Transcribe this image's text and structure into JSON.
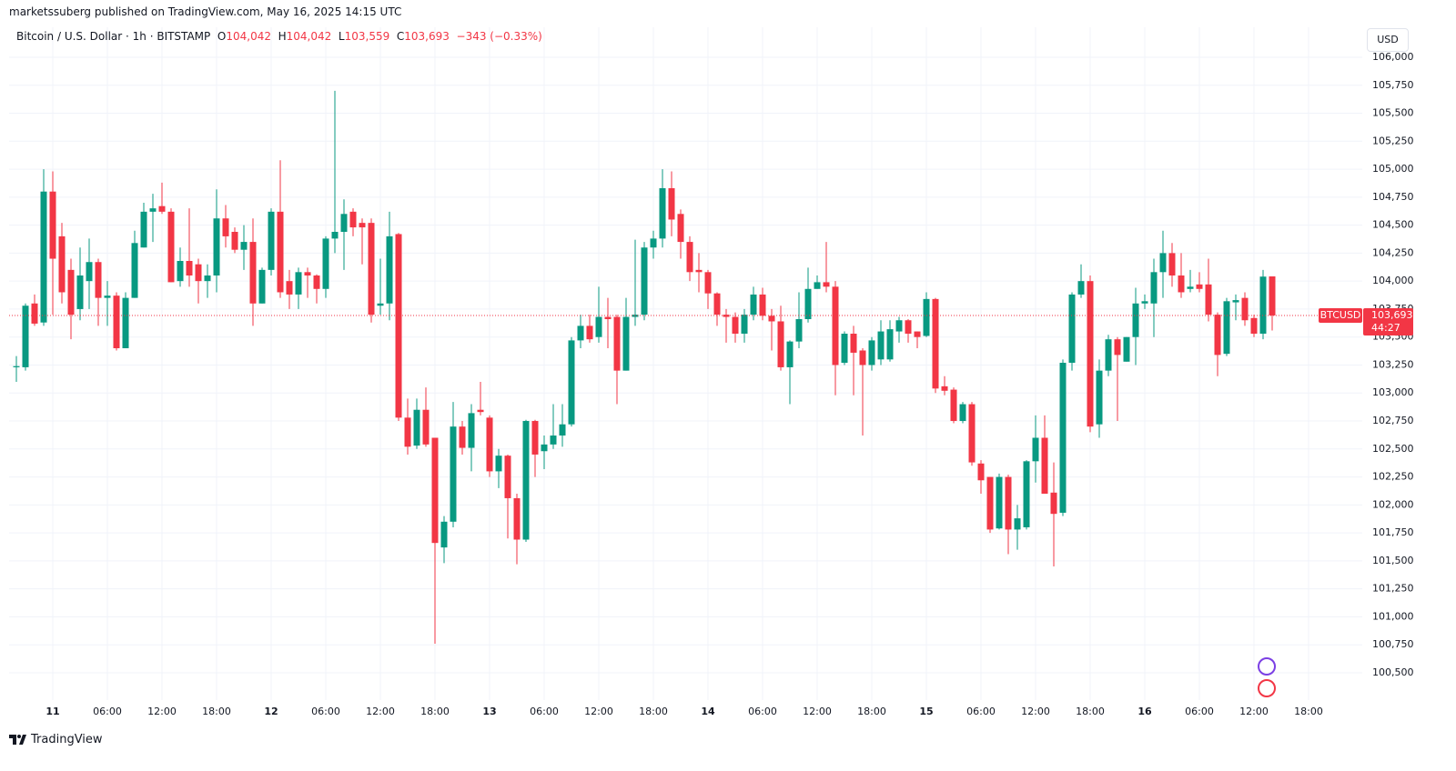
{
  "chart_data": {
    "type": "candlestick",
    "published": "marketssuberg published on TradingView.com, May 16, 2025 14:15 UTC",
    "legend": {
      "symbol": "Bitcoin / U.S. Dollar · 1h · BITSTAMP",
      "o_label": "O",
      "o": "104,042",
      "h_label": "H",
      "h": "104,042",
      "l_label": "L",
      "l": "103,559",
      "c_label": "C",
      "c": "103,693",
      "change": "−343 (−0.33%)"
    },
    "currency": "USD",
    "ticker": "BTCUSD",
    "countdown": "44:27",
    "brand": "TradingView",
    "up_color": "#089981",
    "down_color": "#f23645",
    "grid": true,
    "x": [
      -4,
      -3,
      -2,
      -1,
      0,
      1,
      2,
      3,
      4,
      5,
      6,
      7,
      8,
      9,
      10,
      11,
      12,
      13,
      14,
      15,
      16,
      17,
      18,
      19,
      20,
      21,
      22,
      23,
      24,
      25,
      26,
      27,
      28,
      29,
      30,
      31,
      32,
      33,
      34,
      35,
      36,
      37,
      38,
      39,
      40,
      41,
      42,
      43,
      44,
      45,
      46,
      47,
      48,
      49,
      50,
      51,
      52,
      53,
      54,
      55,
      56,
      57,
      58,
      59,
      60,
      61,
      62,
      63,
      64,
      65,
      66,
      67,
      68,
      69,
      70,
      71,
      72,
      73,
      74,
      75,
      76,
      77,
      78,
      79,
      80,
      81,
      82,
      83,
      84,
      85,
      86,
      87,
      88,
      89,
      90,
      91,
      92,
      93,
      94,
      95,
      96,
      97,
      98,
      99,
      100,
      101,
      102,
      103,
      104,
      105,
      106,
      107,
      108,
      109,
      110,
      111,
      112,
      113,
      114,
      115,
      116,
      117,
      118,
      119,
      120,
      121,
      122,
      123,
      124,
      125,
      126,
      127,
      128,
      129,
      130,
      131,
      132,
      133,
      134
    ],
    "open": [
      103230,
      103230,
      103800,
      103630,
      104800,
      104400,
      104100,
      103750,
      104000,
      104170,
      103850,
      103870,
      103400,
      103850,
      104300,
      104620,
      104670,
      104620,
      104000,
      104180,
      104150,
      104000,
      104050,
      104560,
      104440,
      104280,
      104350,
      103800,
      104100,
      104620,
      104000,
      103880,
      104080,
      104050,
      103930,
      104380,
      104440,
      104620,
      104520,
      104520,
      103780,
      103800,
      104420,
      102780,
      102530,
      102850,
      102600,
      101620,
      101850,
      102700,
      102510,
      102850,
      102780,
      102300,
      102440,
      102060,
      101690,
      102750,
      102480,
      102540,
      102620,
      102720,
      103470,
      103600,
      103500,
      103680,
      103680,
      103200,
      103680,
      103700,
      104300,
      104380,
      104830,
      104600,
      104350,
      104100,
      104080,
      103890,
      103700,
      103680,
      103530,
      103700,
      103880,
      103690,
      103640,
      103230,
      103460,
      103660,
      103930,
      103990,
      103950,
      103270,
      103530,
      103380,
      103250,
      103300,
      103300,
      103550,
      103650,
      103550,
      103510,
      103840,
      103060,
      103030,
      102750,
      102900,
      102370,
      102250,
      101790,
      102250,
      101780,
      101800,
      102390,
      102600,
      102110,
      101930,
      103270,
      103880,
      104000,
      102720,
      103200,
      103480,
      103280,
      103500,
      103800,
      103800,
      104080,
      104250,
      104050,
      103930,
      103970,
      103970,
      103700,
      103350,
      103810,
      103850,
      103670,
      103530,
      104042
    ],
    "high": [
      103330,
      103800,
      103880,
      105000,
      104980,
      104520,
      104200,
      104300,
      104380,
      104200,
      104000,
      103900,
      103900,
      104450,
      104700,
      104780,
      104880,
      104650,
      104300,
      104650,
      104200,
      104150,
      104820,
      104680,
      104480,
      104500,
      104560,
      104120,
      104650,
      105080,
      104100,
      104120,
      104120,
      104060,
      104400,
      105700,
      104730,
      104650,
      104560,
      104560,
      104200,
      104620,
      104430,
      102950,
      102950,
      103050,
      102600,
      101900,
      102920,
      102750,
      102900,
      103100,
      102800,
      102500,
      102450,
      102100,
      102760,
      102760,
      102620,
      102900,
      102900,
      103500,
      103700,
      103700,
      103950,
      103850,
      103700,
      103850,
      104370,
      104350,
      104450,
      105000,
      104980,
      104640,
      104400,
      104250,
      104100,
      103900,
      103750,
      103720,
      103750,
      103950,
      103940,
      103750,
      103780,
      103470,
      103900,
      104120,
      104050,
      104350,
      104000,
      103550,
      103600,
      103400,
      103500,
      103650,
      103650,
      103680,
      103660,
      103550,
      103900,
      103850,
      103150,
      103050,
      102920,
      102920,
      102400,
      102250,
      102280,
      102270,
      102000,
      102400,
      102800,
      102800,
      102380,
      103300,
      103900,
      104150,
      104050,
      103300,
      103520,
      103500,
      103500,
      103940,
      103880,
      104200,
      104450,
      104340,
      104250,
      104100,
      104080,
      104200,
      103720,
      103850,
      103880,
      103900,
      103700,
      104100,
      104042
    ],
    "low": [
      103100,
      103200,
      103600,
      103600,
      103700,
      103800,
      103480,
      103650,
      103750,
      103600,
      103600,
      103380,
      103400,
      103850,
      104300,
      104350,
      104600,
      103990,
      103950,
      103950,
      103800,
      103850,
      103900,
      104300,
      104250,
      104100,
      103600,
      103800,
      104050,
      103850,
      103750,
      103750,
      103850,
      103800,
      103850,
      104250,
      104100,
      104400,
      104150,
      103630,
      103700,
      103650,
      102750,
      102450,
      102500,
      102520,
      100760,
      101480,
      101800,
      102450,
      102300,
      102800,
      102250,
      102150,
      101700,
      101470,
      101670,
      102250,
      102320,
      102500,
      102520,
      102700,
      103400,
      103450,
      103450,
      103400,
      102900,
      103200,
      103600,
      103650,
      104200,
      104300,
      104400,
      104200,
      104000,
      103900,
      103750,
      103600,
      103450,
      103450,
      103450,
      103650,
      103650,
      103380,
      103200,
      102900,
      103400,
      103630,
      103930,
      103900,
      102980,
      103250,
      102980,
      102620,
      103200,
      103250,
      103280,
      103450,
      103450,
      103400,
      103500,
      103000,
      102980,
      102730,
      102730,
      102350,
      102100,
      101750,
      101780,
      101560,
      101600,
      101780,
      102200,
      102100,
      101450,
      101900,
      103200,
      103850,
      102650,
      102600,
      103150,
      102750,
      103280,
      103250,
      103750,
      103500,
      103850,
      103950,
      103850,
      103900,
      103900,
      103640,
      103150,
      103330,
      103650,
      103600,
      103500,
      103480,
      103559
    ],
    "close": [
      103240,
      103780,
      103620,
      104800,
      104200,
      103900,
      103700,
      104050,
      104170,
      103850,
      103870,
      103400,
      103850,
      104340,
      104620,
      104650,
      104620,
      103990,
      104180,
      104050,
      104000,
      104050,
      104560,
      104400,
      104280,
      104350,
      103800,
      104100,
      104620,
      103900,
      103880,
      104080,
      104050,
      103930,
      104380,
      104440,
      104600,
      104480,
      104480,
      103700,
      103800,
      104400,
      102780,
      102520,
      102850,
      102540,
      101660,
      101850,
      102700,
      102510,
      102820,
      102830,
      102300,
      102440,
      102060,
      101690,
      102750,
      102450,
      102540,
      102620,
      102720,
      103470,
      103600,
      103480,
      103680,
      103660,
      103200,
      103680,
      103700,
      104300,
      104380,
      104830,
      104550,
      104350,
      104080,
      104080,
      103890,
      103700,
      103680,
      103530,
      103700,
      103880,
      103690,
      103640,
      103230,
      103460,
      103660,
      103930,
      103990,
      103950,
      103250,
      103530,
      103360,
      103250,
      103470,
      103550,
      103570,
      103650,
      103530,
      103500,
      103840,
      103040,
      103020,
      102750,
      102900,
      102380,
      102220,
      101780,
      102250,
      101780,
      101880,
      102390,
      102600,
      102100,
      101920,
      103270,
      103880,
      104000,
      102700,
      103200,
      103480,
      103340,
      103500,
      103800,
      103820,
      104080,
      104250,
      104050,
      103900,
      103950,
      103930,
      103700,
      103340,
      103820,
      103830,
      103650,
      103530,
      104040,
      103693
    ],
    "xlim": [
      -4.8,
      143.9
    ],
    "ylim": [
      100256,
      106268
    ],
    "xticks": [
      {
        "value": 0,
        "label": "11"
      },
      {
        "value": 6,
        "label": "06:00"
      },
      {
        "value": 12,
        "label": "12:00"
      },
      {
        "value": 18,
        "label": "18:00"
      },
      {
        "value": 24,
        "label": "12"
      },
      {
        "value": 30,
        "label": "06:00"
      },
      {
        "value": 36,
        "label": "12:00"
      },
      {
        "value": 42,
        "label": "18:00"
      },
      {
        "value": 48,
        "label": "13"
      },
      {
        "value": 54,
        "label": "06:00"
      },
      {
        "value": 60,
        "label": "12:00"
      },
      {
        "value": 66,
        "label": "18:00"
      },
      {
        "value": 72,
        "label": "14"
      },
      {
        "value": 78,
        "label": "06:00"
      },
      {
        "value": 84,
        "label": "12:00"
      },
      {
        "value": 90,
        "label": "18:00"
      },
      {
        "value": 96,
        "label": "15"
      },
      {
        "value": 102,
        "label": "06:00"
      },
      {
        "value": 108,
        "label": "12:00"
      },
      {
        "value": 114,
        "label": "18:00"
      },
      {
        "value": 120,
        "label": "16"
      },
      {
        "value": 126,
        "label": "06:00"
      },
      {
        "value": 132,
        "label": "12:00"
      },
      {
        "value": 138,
        "label": "18:00"
      }
    ],
    "yticks": [
      {
        "value": 100500,
        "label": "100,500"
      },
      {
        "value": 100750,
        "label": "100,750"
      },
      {
        "value": 101000,
        "label": "101,000"
      },
      {
        "value": 101250,
        "label": "101,250"
      },
      {
        "value": 101500,
        "label": "101,500"
      },
      {
        "value": 101750,
        "label": "101,750"
      },
      {
        "value": 102000,
        "label": "102,000"
      },
      {
        "value": 102250,
        "label": "102,250"
      },
      {
        "value": 102500,
        "label": "102,500"
      },
      {
        "value": 102750,
        "label": "102,750"
      },
      {
        "value": 103000,
        "label": "103,000"
      },
      {
        "value": 103250,
        "label": "103,250"
      },
      {
        "value": 103500,
        "label": "103,500"
      },
      {
        "value": 103750,
        "label": "103,750"
      },
      {
        "value": 104000,
        "label": "104,000"
      },
      {
        "value": 104250,
        "label": "104,250"
      },
      {
        "value": 104500,
        "label": "104,500"
      },
      {
        "value": 104750,
        "label": "104,750"
      },
      {
        "value": 105000,
        "label": "105,000"
      },
      {
        "value": 105250,
        "label": "105,250"
      },
      {
        "value": 105500,
        "label": "105,500"
      },
      {
        "value": 105750,
        "label": "105,750"
      },
      {
        "value": 106000,
        "label": "106,000"
      }
    ]
  }
}
